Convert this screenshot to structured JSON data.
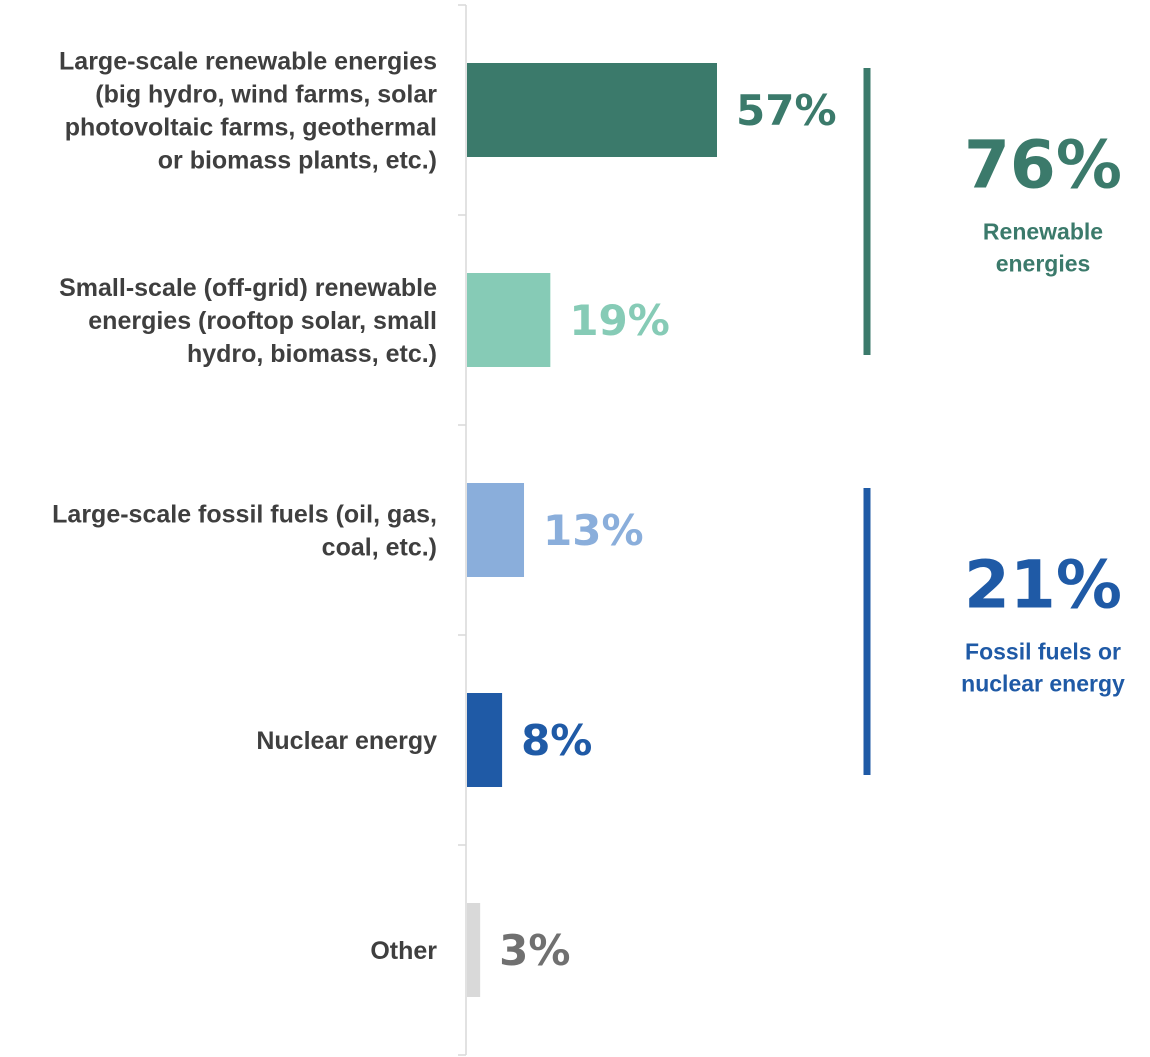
{
  "chart_data": {
    "type": "bar",
    "orientation": "horizontal",
    "categories": [
      [
        "Large-scale renewable energies",
        "(big hydro, wind farms, solar",
        "photovoltaic farms, geothermal",
        "or biomass plants, etc.)"
      ],
      [
        "Small-scale (off-grid) renewable",
        "energies (rooftop solar, small",
        "hydro, biomass, etc.)"
      ],
      [
        "Large-scale fossil fuels (oil, gas,",
        "coal, etc.)"
      ],
      [
        "Nuclear energy"
      ],
      [
        "Other"
      ]
    ],
    "values": [
      57,
      19,
      13,
      8,
      3
    ],
    "value_labels": [
      "57%",
      "19%",
      "13%",
      "8%",
      "3%"
    ],
    "colors": [
      "#3b7a6b",
      "#86cbb6",
      "#8aaedb",
      "#1f5aa6",
      "#d9d9d9"
    ],
    "label_colors": [
      "#3b7a6b",
      "#86cbb6",
      "#8aaedb",
      "#1f5aa6",
      "#707070"
    ],
    "xlim": [
      0,
      100
    ],
    "grid": false,
    "groups": [
      {
        "pct": "76%",
        "label": [
          "Renewable",
          "energies"
        ],
        "color": "#3b7a6b",
        "span": [
          0,
          1
        ]
      },
      {
        "pct": "21%",
        "label": [
          "Fossil fuels or",
          "nuclear energy"
        ],
        "color": "#1f5aa6",
        "span": [
          2,
          3
        ]
      }
    ]
  }
}
